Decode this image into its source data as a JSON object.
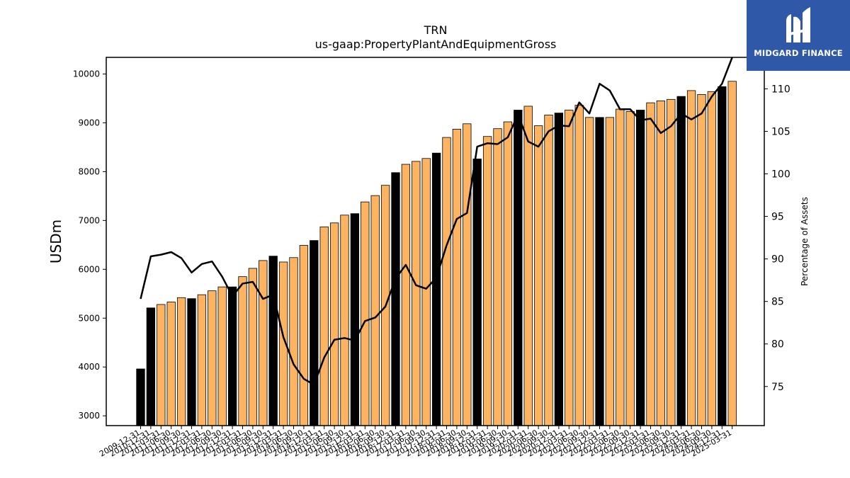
{
  "brand": {
    "name": "MIDGARD FINANCE",
    "bg_color": "#2f58a8"
  },
  "chart_data": {
    "type": "bar",
    "title": "TRN",
    "subtitle": "us-gaap:PropertyPlantAndEquipmentGross",
    "ylabel": "USDm",
    "y2label": "Percentage of Assets",
    "ylim": [
      2800,
      10340
    ],
    "y2lim": [
      70.4,
      113.7
    ],
    "yticks": [
      3000,
      4000,
      5000,
      6000,
      7000,
      8000,
      9000,
      10000
    ],
    "y2ticks": [
      75,
      80,
      85,
      90,
      95,
      100,
      105,
      110
    ],
    "colors": {
      "annual": "#000000",
      "quarterly": "#fdb462",
      "line": "#000000"
    },
    "categories": [
      "2009-12-31",
      "2010-12-31",
      "2011-03-31",
      "2011-06-30",
      "2011-09-30",
      "2011-12-31",
      "2012-03-31",
      "2012-06-30",
      "2012-09-30",
      "2012-12-31",
      "2013-03-31",
      "2013-06-30",
      "2013-09-30",
      "2013-12-31",
      "2014-03-31",
      "2014-06-30",
      "2014-09-30",
      "2014-12-31",
      "2015-03-31",
      "2015-06-30",
      "2015-09-30",
      "2015-12-31",
      "2016-03-31",
      "2016-06-30",
      "2016-09-30",
      "2016-12-31",
      "2017-03-31",
      "2017-06-30",
      "2017-09-30",
      "2017-12-31",
      "2018-03-31",
      "2018-06-30",
      "2018-09-30",
      "2018-12-31",
      "2019-03-31",
      "2019-06-30",
      "2019-09-30",
      "2019-12-31",
      "2020-03-31",
      "2020-06-30",
      "2020-09-30",
      "2020-12-31",
      "2021-03-31",
      "2021-06-30",
      "2021-09-30",
      "2021-12-31",
      "2022-03-31",
      "2022-06-30",
      "2022-09-30",
      "2022-12-31",
      "2023-03-31",
      "2023-06-30",
      "2023-09-30",
      "2023-12-31",
      "2024-03-31",
      "2024-06-30",
      "2024-09-30",
      "2024-12-31",
      "2025-03-31"
    ],
    "annual": [
      true,
      true,
      false,
      false,
      false,
      true,
      false,
      false,
      false,
      true,
      false,
      false,
      false,
      true,
      false,
      false,
      false,
      true,
      false,
      false,
      false,
      true,
      false,
      false,
      false,
      true,
      false,
      false,
      false,
      true,
      false,
      false,
      false,
      true,
      false,
      false,
      false,
      true,
      false,
      false,
      false,
      true,
      false,
      false,
      false,
      true,
      false,
      false,
      false,
      true,
      false,
      false,
      false,
      true,
      false,
      false,
      false,
      true,
      false
    ],
    "values": [
      3960,
      5210,
      5280,
      5330,
      5420,
      5400,
      5480,
      5560,
      5640,
      5640,
      5850,
      6020,
      6180,
      6270,
      6150,
      6240,
      6490,
      6590,
      6870,
      6950,
      7110,
      7140,
      7380,
      7510,
      7720,
      7980,
      8150,
      8210,
      8270,
      8380,
      8700,
      8870,
      8980,
      8260,
      8720,
      8880,
      9020,
      9260,
      9340,
      8940,
      9160,
      9200,
      9260,
      9360,
      9110,
      9110,
      9110,
      9280,
      9230,
      9260,
      9410,
      9450,
      9480,
      9540,
      9660,
      9580,
      9640,
      9740,
      9850
    ],
    "percent": [
      85.3,
      90.3,
      90.5,
      90.8,
      90.1,
      88.4,
      89.4,
      89.7,
      87.9,
      85.6,
      87.1,
      87.3,
      85.3,
      85.8,
      80.8,
      77.6,
      75.9,
      75.2,
      78.4,
      80.5,
      80.7,
      80.4,
      82.7,
      83.1,
      84.4,
      87.7,
      89.3,
      86.9,
      86.5,
      87.8,
      91.6,
      94.7,
      95.4,
      103.2,
      103.6,
      103.5,
      104.3,
      107.0,
      103.8,
      103.2,
      105.0,
      105.7,
      105.6,
      108.4,
      107.1,
      110.6,
      109.8,
      107.6,
      107.6,
      106.3,
      106.5,
      104.8,
      105.6,
      107.1,
      106.4,
      107.1,
      109.1,
      110.6,
      113.7
    ]
  }
}
